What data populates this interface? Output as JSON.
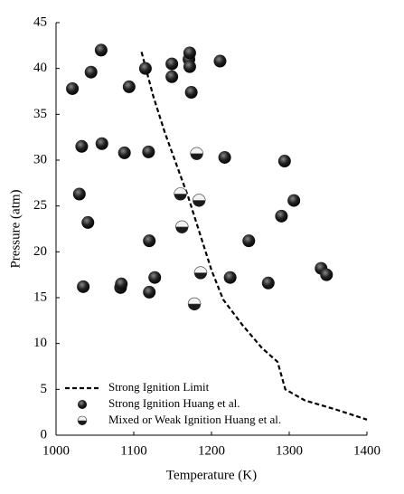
{
  "chart_data": {
    "type": "scatter",
    "x_label": "Temperature (K)",
    "y_label": "Pressure (atm)",
    "xlim": [
      1000,
      1400
    ],
    "xticks": [
      1000,
      1100,
      1200,
      1300,
      1400
    ],
    "ylim": [
      0,
      45
    ],
    "yticks": [
      0,
      5,
      10,
      15,
      20,
      25,
      30,
      35,
      40,
      45
    ],
    "legend": "lower left",
    "lines": [
      {
        "name": "Strong Ignition Limit",
        "color": "#000000",
        "x": [
          1110,
          1125,
          1140,
          1155,
          1170,
          1185,
          1200,
          1215,
          1240,
          1265,
          1285,
          1295,
          1320,
          1360,
          1400
        ],
        "values": [
          41.8,
          37,
          33,
          29.5,
          26,
          22,
          18,
          14.8,
          12,
          9.5,
          8,
          5,
          3.8,
          2.8,
          1.7
        ]
      }
    ],
    "series": [
      {
        "name": "Strong Ignition Huang et al.",
        "color": "#1a1a1a",
        "x": [
          1021,
          1045,
          1058,
          1094,
          1115,
          1149,
          1149,
          1171,
          1172,
          1172,
          1174,
          1211,
          1033,
          1059,
          1088,
          1119,
          1217,
          1294,
          1030,
          1306,
          1290,
          1041,
          1120,
          1248,
          1341,
          1348,
          1035,
          1083,
          1084,
          1120,
          1127,
          1224,
          1273
        ],
        "values": [
          37.8,
          39.6,
          42,
          38,
          40,
          40.5,
          39.1,
          41,
          41.7,
          40.2,
          37.4,
          40.8,
          31.5,
          31.8,
          30.8,
          30.9,
          30.3,
          29.9,
          26.3,
          25.6,
          23.9,
          23.2,
          21.2,
          21.2,
          18.2,
          17.5,
          16.2,
          16.1,
          16.5,
          15.6,
          17.2,
          17.2,
          16.6
        ]
      },
      {
        "name": "Mixed or Weak Ignition Huang et al.",
        "color": "#1a1a1a",
        "x": [
          1160,
          1162,
          1184,
          1181,
          1186,
          1178
        ],
        "values": [
          26.3,
          22.7,
          25.6,
          30.7,
          17.7,
          14.3
        ]
      }
    ]
  }
}
